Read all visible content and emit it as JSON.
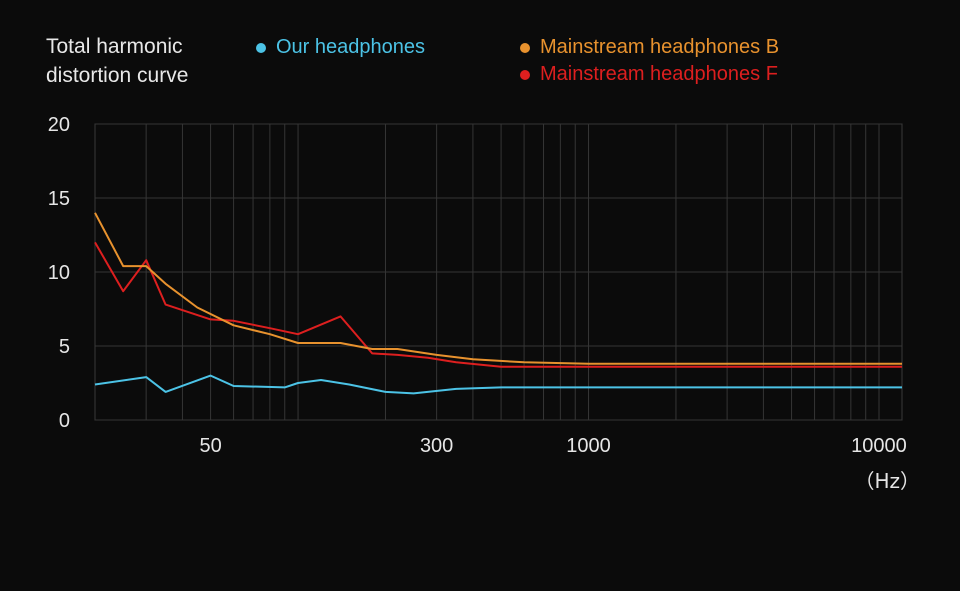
{
  "chart_data": {
    "type": "line",
    "title_line1": "Total harmonic",
    "title_line2": "distortion curve",
    "xscale": "log",
    "xlim": [
      20,
      12000
    ],
    "ylim": [
      0,
      20
    ],
    "grid": true,
    "x_ticks": [
      {
        "value": 50,
        "label": "50"
      },
      {
        "value": 300,
        "label": "300"
      },
      {
        "value": 1000,
        "label": "1000"
      },
      {
        "value": 10000,
        "label": "10000"
      }
    ],
    "x_unit": "（Hz）",
    "y_ticks": [
      {
        "value": 0,
        "label": "0"
      },
      {
        "value": 5,
        "label": "5"
      },
      {
        "value": 10,
        "label": "10"
      },
      {
        "value": 15,
        "label": "15"
      },
      {
        "value": 20,
        "label": "20"
      }
    ],
    "legend_placement": "top",
    "series": [
      {
        "name": "Our headphones",
        "color": "#4cc3e6",
        "x": [
          20,
          30,
          35,
          50,
          60,
          90,
          100,
          120,
          150,
          200,
          250,
          350,
          500,
          1000,
          5000,
          12000
        ],
        "y": [
          2.4,
          2.9,
          1.9,
          3.0,
          2.3,
          2.2,
          2.5,
          2.7,
          2.4,
          1.9,
          1.8,
          2.1,
          2.2,
          2.2,
          2.2,
          2.2
        ]
      },
      {
        "name": "Mainstream headphones B",
        "color": "#e8922e",
        "x": [
          20,
          25,
          30,
          35,
          45,
          60,
          80,
          100,
          140,
          180,
          220,
          300,
          400,
          600,
          1000,
          5000,
          12000
        ],
        "y": [
          14.0,
          10.4,
          10.4,
          9.2,
          7.6,
          6.4,
          5.8,
          5.2,
          5.2,
          4.8,
          4.8,
          4.4,
          4.1,
          3.9,
          3.8,
          3.8,
          3.8
        ]
      },
      {
        "name": "Mainstream headphones F",
        "color": "#dd1f1f",
        "x": [
          20,
          25,
          30,
          35,
          50,
          60,
          80,
          100,
          140,
          180,
          220,
          280,
          350,
          500,
          1000,
          5000,
          12000
        ],
        "y": [
          12.0,
          8.7,
          10.8,
          7.8,
          6.8,
          6.7,
          6.2,
          5.8,
          7.0,
          4.5,
          4.4,
          4.2,
          3.9,
          3.6,
          3.6,
          3.6,
          3.6
        ]
      }
    ]
  }
}
